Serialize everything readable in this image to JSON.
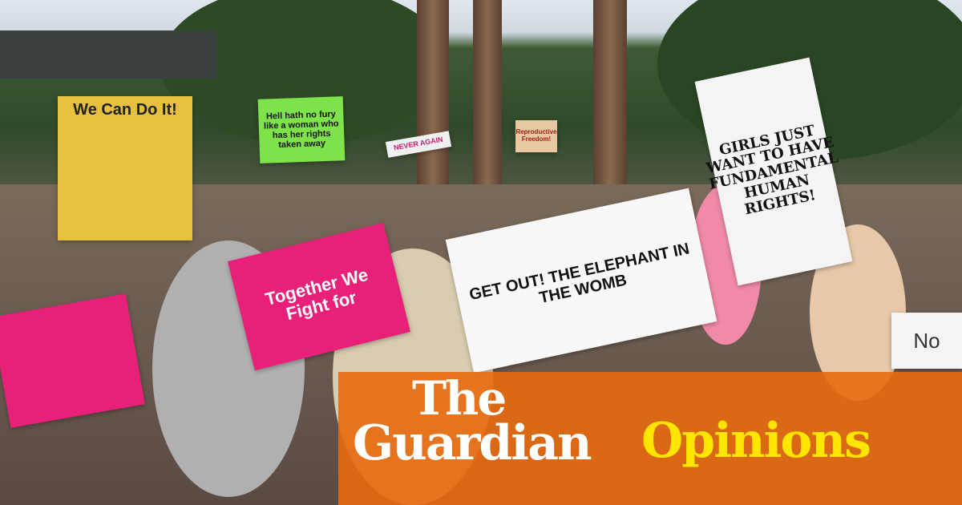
{
  "brand": {
    "line1": "The",
    "line2": "Guardian",
    "section": "Opinions",
    "banner_color": "#e86a10",
    "section_color": "#ffe500"
  },
  "photo": {
    "signs": [
      {
        "text": "We Can Do It!",
        "bg": "#e8c040",
        "fg": "#222"
      },
      {
        "text": "Hell hath no fury like a woman who has her rights taken away",
        "bg": "#7ee34a",
        "fg": "#111"
      },
      {
        "text": "NEVER AGAIN",
        "bg": "#f0f0f0",
        "fg": "#c02070"
      },
      {
        "text": "Reproductive Freedom!",
        "bg": "#e8c8a0",
        "fg": "#a02020"
      },
      {
        "text": "GIRLS JUST WANT TO HAVE FUNDAMENTAL HUMAN RIGHTS!",
        "bg": "#f4f4f4",
        "fg": "#111"
      },
      {
        "text": "Together We Fight for",
        "bg": "#e8207a",
        "fg": "#fff"
      },
      {
        "text": "GET OUT! THE ELEPHANT IN THE WOMB",
        "bg": "#f8f8f8",
        "fg": "#111"
      },
      {
        "text": "No",
        "bg": "#f4f4f4",
        "fg": "#333"
      }
    ]
  }
}
